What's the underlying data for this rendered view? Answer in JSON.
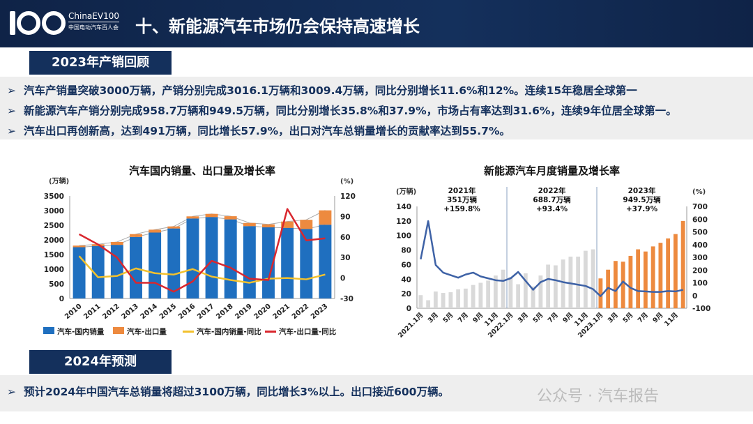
{
  "header": {
    "brand_en": "ChinaEV100",
    "brand_cn": "中国电动汽车百人会",
    "title": "十、新能源汽车市场仍会保持高速增长"
  },
  "section1": {
    "tag": "2023年产销回顾",
    "bullets": [
      "汽车产销量突破3000万辆，产销分别完成3016.1万辆和3009.4万辆，同比分别增长11.6%和12%。连续15年稳居全球第一",
      "新能源汽车产销分别完成958.7万辆和949.5万辆，同比分别增长35.8%和37.9%，市场占有率达到31.6%，连续9年位居全球第一。",
      "汽车出口再创新高，达到491万辆，同比增长57.9%，出口对汽车总销量增长的贡献率达到55.7%。"
    ]
  },
  "section2": {
    "tag": "2024年预测",
    "bullets": [
      "预计2024年中国汽车总销量将超过3100万辆，同比增长3%以上。出口接近600万辆。"
    ]
  },
  "watermark": "公众号 · 汽车报告",
  "chart_data": [
    {
      "type": "bar",
      "title": "汽车国内销量、出口量及增长率",
      "ylabel": "(万辆)",
      "y2label": "(%)",
      "ylim": [
        0,
        3500
      ],
      "y2lim": [
        -30,
        120
      ],
      "yticks": [
        0,
        500,
        1000,
        1500,
        2000,
        2500,
        3000,
        3500
      ],
      "y2ticks": [
        -30,
        0,
        30,
        60,
        90,
        120
      ],
      "categories": [
        "2010",
        "2011",
        "2012",
        "2013",
        "2014",
        "2015",
        "2016",
        "2017",
        "2018",
        "2019",
        "2020",
        "2021",
        "2022",
        "2023"
      ],
      "series": [
        {
          "name": "汽车-国内销量",
          "kind": "stacked-bar",
          "color": "#1f6fbf",
          "values": [
            1750,
            1790,
            1830,
            2100,
            2250,
            2390,
            2730,
            2780,
            2700,
            2470,
            2430,
            2410,
            2370,
            2518
          ]
        },
        {
          "name": "汽车-出口量",
          "kind": "stacked-bar",
          "color": "#ed8a3f",
          "values": [
            56,
            60,
            100,
            98,
            99,
            70,
            73,
            108,
            108,
            107,
            101,
            217,
            316,
            491
          ]
        },
        {
          "name": "汽车-国内销量-同比",
          "kind": "line",
          "axis": "right",
          "color": "#f2c12e",
          "values": [
            32,
            1,
            3,
            14,
            7,
            5,
            13,
            2,
            -3,
            -7,
            -1,
            0,
            -2,
            5
          ]
        },
        {
          "name": "汽车-出口量-同比",
          "kind": "line",
          "axis": "right",
          "color": "#d9272e",
          "values": [
            64,
            49,
            30,
            -7,
            -7,
            -20,
            -5,
            25,
            15,
            -1,
            -3,
            101,
            55,
            58
          ]
        }
      ]
    },
    {
      "type": "bar",
      "title": "新能源汽车月度销量及增长率",
      "ylabel": "(万辆)",
      "y2label": "(%)",
      "ylim": [
        0,
        140
      ],
      "y2lim": [
        -100,
        700
      ],
      "yticks": [
        0,
        20,
        40,
        60,
        80,
        100,
        120,
        140
      ],
      "y2ticks": [
        -100,
        0,
        100,
        200,
        300,
        400,
        500,
        600,
        700
      ],
      "xticklabels": [
        "2021.1月",
        "3月",
        "5月",
        "7月",
        "9月",
        "11月",
        "2022.1月",
        "3月",
        "5月",
        "7月",
        "9月",
        "11月",
        "2023.1月",
        "3月",
        "5月",
        "7月",
        "9月",
        "11月"
      ],
      "annotations": [
        {
          "year": "2021年",
          "total": "351万辆",
          "growth": "+159.8%"
        },
        {
          "year": "2022年",
          "total": "688.7万辆",
          "growth": "+93.4%"
        },
        {
          "year": "2023年",
          "total": "949.5万辆",
          "growth": "+37.9%"
        }
      ],
      "series": [
        {
          "name": "月度销量",
          "kind": "bar",
          "values": [
            18,
            11,
            23,
            21,
            22,
            26,
            27,
            32,
            35,
            38,
            45,
            53,
            43,
            33,
            48,
            30,
            45,
            60,
            59,
            67,
            71,
            71,
            79,
            81,
            41,
            53,
            65,
            64,
            72,
            81,
            78,
            85,
            90,
            96,
            102,
            120
          ],
          "colors": [
            "#d9d9d9",
            "#ed8a3f"
          ]
        },
        {
          "name": "增长率",
          "kind": "line",
          "axis": "right",
          "color": "#3e62a6",
          "values": [
            285,
            585,
            240,
            180,
            160,
            140,
            165,
            180,
            150,
            135,
            120,
            115,
            135,
            185,
            115,
            45,
            105,
            130,
            120,
            105,
            95,
            85,
            75,
            50,
            -5,
            60,
            35,
            110,
            60,
            35,
            32,
            28,
            28,
            35,
            32,
            45
          ]
        }
      ]
    }
  ]
}
